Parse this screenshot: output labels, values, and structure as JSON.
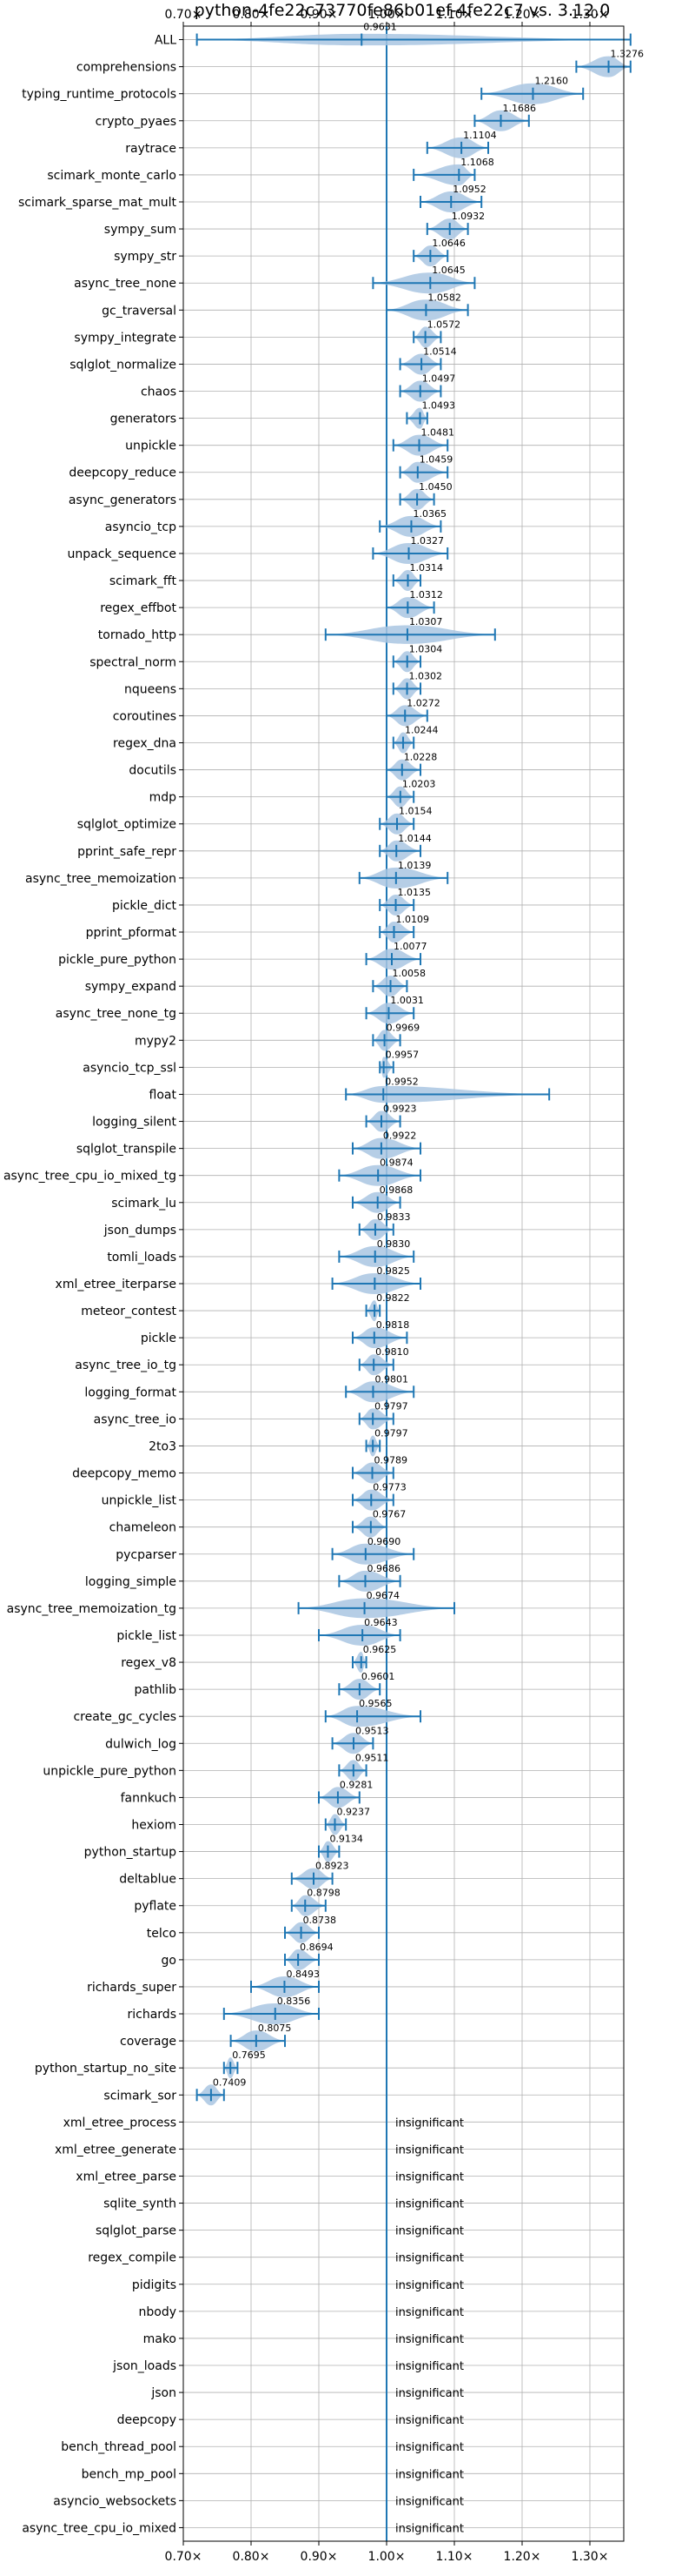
{
  "chart_data": {
    "type": "violin",
    "title": "python-4fe22c73770fe86b01ef-4fe22c7 vs. 3.12.0",
    "xlim": [
      0.7,
      1.35
    ],
    "x_ticks": [
      0.7,
      0.8,
      0.9,
      1.0,
      1.1,
      1.2,
      1.3
    ],
    "x_tick_labels": [
      "0.70×",
      "0.80×",
      "0.90×",
      "1.00×",
      "1.10×",
      "1.20×",
      "1.30×"
    ],
    "reference_line": 1.0,
    "grid": true,
    "insignificant_label": "insignificant",
    "benchmarks": [
      {
        "name": "ALL",
        "mean": 0.9631,
        "min": 0.72,
        "max": 1.36
      },
      {
        "name": "comprehensions",
        "mean": 1.3276,
        "min": 1.28,
        "max": 1.36
      },
      {
        "name": "typing_runtime_protocols",
        "mean": 1.216,
        "min": 1.14,
        "max": 1.29
      },
      {
        "name": "crypto_pyaes",
        "mean": 1.1686,
        "min": 1.13,
        "max": 1.21
      },
      {
        "name": "raytrace",
        "mean": 1.1104,
        "min": 1.06,
        "max": 1.15
      },
      {
        "name": "scimark_monte_carlo",
        "mean": 1.1068,
        "min": 1.04,
        "max": 1.13
      },
      {
        "name": "scimark_sparse_mat_mult",
        "mean": 1.0952,
        "min": 1.05,
        "max": 1.14
      },
      {
        "name": "sympy_sum",
        "mean": 1.0932,
        "min": 1.06,
        "max": 1.12
      },
      {
        "name": "sympy_str",
        "mean": 1.0646,
        "min": 1.04,
        "max": 1.09
      },
      {
        "name": "async_tree_none",
        "mean": 1.0645,
        "min": 0.98,
        "max": 1.13
      },
      {
        "name": "gc_traversal",
        "mean": 1.0582,
        "min": 1.0,
        "max": 1.12
      },
      {
        "name": "sympy_integrate",
        "mean": 1.0572,
        "min": 1.04,
        "max": 1.08
      },
      {
        "name": "sqlglot_normalize",
        "mean": 1.0514,
        "min": 1.02,
        "max": 1.08
      },
      {
        "name": "chaos",
        "mean": 1.0497,
        "min": 1.02,
        "max": 1.08
      },
      {
        "name": "generators",
        "mean": 1.0493,
        "min": 1.03,
        "max": 1.06
      },
      {
        "name": "unpickle",
        "mean": 1.0481,
        "min": 1.01,
        "max": 1.09
      },
      {
        "name": "deepcopy_reduce",
        "mean": 1.0459,
        "min": 1.02,
        "max": 1.09
      },
      {
        "name": "async_generators",
        "mean": 1.045,
        "min": 1.02,
        "max": 1.07
      },
      {
        "name": "asyncio_tcp",
        "mean": 1.0365,
        "min": 0.99,
        "max": 1.08
      },
      {
        "name": "unpack_sequence",
        "mean": 1.0327,
        "min": 0.98,
        "max": 1.09
      },
      {
        "name": "scimark_fft",
        "mean": 1.0314,
        "min": 1.01,
        "max": 1.05
      },
      {
        "name": "regex_effbot",
        "mean": 1.0312,
        "min": 1.0,
        "max": 1.07
      },
      {
        "name": "tornado_http",
        "mean": 1.0307,
        "min": 0.91,
        "max": 1.16
      },
      {
        "name": "spectral_norm",
        "mean": 1.0304,
        "min": 1.01,
        "max": 1.05
      },
      {
        "name": "nqueens",
        "mean": 1.0302,
        "min": 1.01,
        "max": 1.05
      },
      {
        "name": "coroutines",
        "mean": 1.0272,
        "min": 1.0,
        "max": 1.06
      },
      {
        "name": "regex_dna",
        "mean": 1.0244,
        "min": 1.01,
        "max": 1.04
      },
      {
        "name": "docutils",
        "mean": 1.0228,
        "min": 1.0,
        "max": 1.05
      },
      {
        "name": "mdp",
        "mean": 1.0203,
        "min": 1.0,
        "max": 1.04
      },
      {
        "name": "sqlglot_optimize",
        "mean": 1.0154,
        "min": 0.99,
        "max": 1.04
      },
      {
        "name": "pprint_safe_repr",
        "mean": 1.0144,
        "min": 0.99,
        "max": 1.05
      },
      {
        "name": "async_tree_memoization",
        "mean": 1.0139,
        "min": 0.96,
        "max": 1.09
      },
      {
        "name": "pickle_dict",
        "mean": 1.0135,
        "min": 0.99,
        "max": 1.04
      },
      {
        "name": "pprint_pformat",
        "mean": 1.0109,
        "min": 0.99,
        "max": 1.04
      },
      {
        "name": "pickle_pure_python",
        "mean": 1.0077,
        "min": 0.97,
        "max": 1.05
      },
      {
        "name": "sympy_expand",
        "mean": 1.0058,
        "min": 0.98,
        "max": 1.03
      },
      {
        "name": "async_tree_none_tg",
        "mean": 1.0031,
        "min": 0.97,
        "max": 1.04
      },
      {
        "name": "mypy2",
        "mean": 0.9969,
        "min": 0.98,
        "max": 1.02
      },
      {
        "name": "asyncio_tcp_ssl",
        "mean": 0.9957,
        "min": 0.99,
        "max": 1.01
      },
      {
        "name": "float",
        "mean": 0.9952,
        "min": 0.94,
        "max": 1.24
      },
      {
        "name": "logging_silent",
        "mean": 0.9923,
        "min": 0.97,
        "max": 1.02
      },
      {
        "name": "sqlglot_transpile",
        "mean": 0.9922,
        "min": 0.95,
        "max": 1.05
      },
      {
        "name": "async_tree_cpu_io_mixed_tg",
        "mean": 0.9874,
        "min": 0.93,
        "max": 1.05
      },
      {
        "name": "scimark_lu",
        "mean": 0.9868,
        "min": 0.95,
        "max": 1.02
      },
      {
        "name": "json_dumps",
        "mean": 0.9833,
        "min": 0.96,
        "max": 1.01
      },
      {
        "name": "tomli_loads",
        "mean": 0.983,
        "min": 0.93,
        "max": 1.04
      },
      {
        "name": "xml_etree_iterparse",
        "mean": 0.9825,
        "min": 0.92,
        "max": 1.05
      },
      {
        "name": "meteor_contest",
        "mean": 0.9822,
        "min": 0.97,
        "max": 0.99
      },
      {
        "name": "pickle",
        "mean": 0.9818,
        "min": 0.95,
        "max": 1.03
      },
      {
        "name": "async_tree_io_tg",
        "mean": 0.981,
        "min": 0.96,
        "max": 1.01
      },
      {
        "name": "logging_format",
        "mean": 0.9801,
        "min": 0.94,
        "max": 1.04
      },
      {
        "name": "async_tree_io",
        "mean": 0.9797,
        "min": 0.96,
        "max": 1.01
      },
      {
        "name": "2to3",
        "mean": 0.9797,
        "min": 0.97,
        "max": 0.99
      },
      {
        "name": "deepcopy_memo",
        "mean": 0.9789,
        "min": 0.95,
        "max": 1.01
      },
      {
        "name": "unpickle_list",
        "mean": 0.9773,
        "min": 0.95,
        "max": 1.01
      },
      {
        "name": "chameleon",
        "mean": 0.9767,
        "min": 0.95,
        "max": 1.0
      },
      {
        "name": "pycparser",
        "mean": 0.969,
        "min": 0.92,
        "max": 1.04
      },
      {
        "name": "logging_simple",
        "mean": 0.9686,
        "min": 0.93,
        "max": 1.02
      },
      {
        "name": "async_tree_memoization_tg",
        "mean": 0.9674,
        "min": 0.87,
        "max": 1.1
      },
      {
        "name": "pickle_list",
        "mean": 0.9643,
        "min": 0.9,
        "max": 1.02
      },
      {
        "name": "regex_v8",
        "mean": 0.9625,
        "min": 0.95,
        "max": 0.97
      },
      {
        "name": "pathlib",
        "mean": 0.9601,
        "min": 0.93,
        "max": 0.99
      },
      {
        "name": "create_gc_cycles",
        "mean": 0.9565,
        "min": 0.91,
        "max": 1.05
      },
      {
        "name": "dulwich_log",
        "mean": 0.9513,
        "min": 0.92,
        "max": 0.98
      },
      {
        "name": "unpickle_pure_python",
        "mean": 0.9511,
        "min": 0.93,
        "max": 0.97
      },
      {
        "name": "fannkuch",
        "mean": 0.9281,
        "min": 0.9,
        "max": 0.96
      },
      {
        "name": "hexiom",
        "mean": 0.9237,
        "min": 0.91,
        "max": 0.94
      },
      {
        "name": "python_startup",
        "mean": 0.9134,
        "min": 0.9,
        "max": 0.93
      },
      {
        "name": "deltablue",
        "mean": 0.8923,
        "min": 0.86,
        "max": 0.92
      },
      {
        "name": "pyflate",
        "mean": 0.8798,
        "min": 0.86,
        "max": 0.91
      },
      {
        "name": "telco",
        "mean": 0.8738,
        "min": 0.85,
        "max": 0.9
      },
      {
        "name": "go",
        "mean": 0.8694,
        "min": 0.85,
        "max": 0.9
      },
      {
        "name": "richards_super",
        "mean": 0.8493,
        "min": 0.8,
        "max": 0.9
      },
      {
        "name": "richards",
        "mean": 0.8356,
        "min": 0.76,
        "max": 0.9
      },
      {
        "name": "coverage",
        "mean": 0.8075,
        "min": 0.77,
        "max": 0.85
      },
      {
        "name": "python_startup_no_site",
        "mean": 0.7695,
        "min": 0.76,
        "max": 0.78
      },
      {
        "name": "scimark_sor",
        "mean": 0.7409,
        "min": 0.72,
        "max": 0.76
      },
      {
        "name": "xml_etree_process",
        "insignificant": true
      },
      {
        "name": "xml_etree_generate",
        "insignificant": true
      },
      {
        "name": "xml_etree_parse",
        "insignificant": true
      },
      {
        "name": "sqlite_synth",
        "insignificant": true
      },
      {
        "name": "sqlglot_parse",
        "insignificant": true
      },
      {
        "name": "regex_compile",
        "insignificant": true
      },
      {
        "name": "pidigits",
        "insignificant": true
      },
      {
        "name": "nbody",
        "insignificant": true
      },
      {
        "name": "mako",
        "insignificant": true
      },
      {
        "name": "json_loads",
        "insignificant": true
      },
      {
        "name": "json",
        "insignificant": true
      },
      {
        "name": "deepcopy",
        "insignificant": true
      },
      {
        "name": "bench_thread_pool",
        "insignificant": true
      },
      {
        "name": "bench_mp_pool",
        "insignificant": true
      },
      {
        "name": "asyncio_websockets",
        "insignificant": true
      },
      {
        "name": "async_tree_cpu_io_mixed",
        "insignificant": true
      }
    ],
    "colors": {
      "violin": "#a9c6e2",
      "bar": "#1f77b4",
      "grid": "#b0b0b0",
      "axis": "#000000"
    }
  }
}
